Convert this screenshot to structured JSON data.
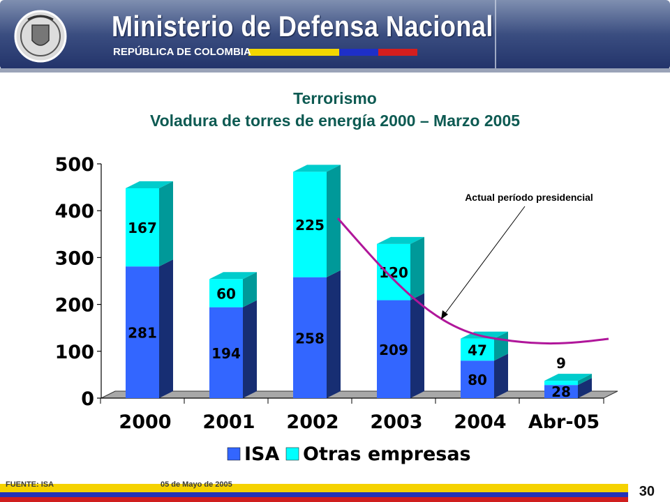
{
  "header": {
    "title": "Ministerio de Defensa Nacional",
    "subtitle": "REPÚBLICA DE COLOMBIA",
    "logo_icon": "colombia-coat-of-arms-icon"
  },
  "slide_title": {
    "line1": "Terrorismo",
    "line2": "Voladura de torres de energía 2000 – Marzo 2005"
  },
  "annotation": "Actual período presidencial",
  "chart_data": {
    "type": "bar",
    "stacked": true,
    "style": "3d",
    "categories": [
      "2000",
      "2001",
      "2002",
      "2003",
      "2004",
      "Abr-05"
    ],
    "series": [
      {
        "name": "ISA",
        "values": [
          281,
          194,
          258,
          209,
          80,
          28
        ],
        "color": "#3366ff"
      },
      {
        "name": "Otras empresas",
        "values": [
          167,
          60,
          225,
          120,
          47,
          9
        ],
        "color": "#00ffff"
      }
    ],
    "ylim": [
      0,
      500
    ],
    "yticks": [
      "0",
      "100",
      "200",
      "300",
      "400",
      "500"
    ],
    "legend_position": "bottom",
    "trend_line_color": "#b0169a",
    "grid": false
  },
  "footer": {
    "source": "FUENTE: ISA",
    "date": "05 de Mayo de 2005",
    "page": "30"
  }
}
